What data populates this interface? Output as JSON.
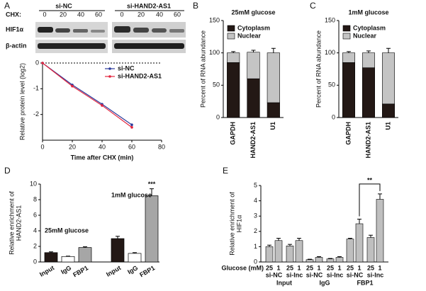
{
  "panel_labels": [
    "A",
    "B",
    "C",
    "D",
    "E"
  ],
  "blot": {
    "chx_label": "CHX:",
    "groups": [
      "si-NC",
      "si-HAND2-AS1"
    ],
    "times": [
      "0",
      "20",
      "40",
      "60",
      "0",
      "20",
      "40",
      "60"
    ],
    "rows": [
      "HIF1α",
      "β-actin"
    ]
  },
  "chart_data": [
    {
      "type": "line",
      "xlabel": "Time after CHX (min)",
      "ylabel": "Relative protein level (log2)",
      "x": [
        0,
        20,
        40,
        60
      ],
      "series": [
        {
          "name": "si-NC",
          "color": "#2b3a9b",
          "values": [
            0,
            -0.85,
            -1.6,
            -2.4
          ]
        },
        {
          "name": "si-HAND2-AS1",
          "color": "#e3263f",
          "values": [
            0,
            -0.9,
            -1.65,
            -2.5
          ]
        }
      ],
      "xlim": [
        0,
        80
      ],
      "xticks": [
        0,
        20,
        40,
        60,
        80
      ],
      "ylim": [
        -3,
        0
      ],
      "yticks": [
        0,
        -1,
        -2
      ],
      "zero_line": true,
      "legend": "upper-right"
    },
    {
      "type": "stacked-bar",
      "title": "25mM glucose",
      "ylabel": "Percent of RNA abundance",
      "categories": [
        "GAPDH",
        "HAND2-AS1",
        "U1"
      ],
      "series": [
        {
          "name": "Cytoplasm",
          "color": "#231815",
          "values": [
            85,
            60,
            23
          ],
          "errors": [
            3,
            6,
            2
          ]
        },
        {
          "name": "Nuclear",
          "color": "#c4c4c4",
          "values": [
            15,
            41,
            77
          ],
          "errors": [
            2,
            3,
            7
          ]
        }
      ],
      "ylim": [
        0,
        150
      ],
      "yticks": [
        0,
        50,
        100,
        150
      ],
      "legend": "upper-left"
    },
    {
      "type": "stacked-bar",
      "title": "1mM glucose",
      "ylabel": "Percent of RNA abundance",
      "categories": [
        "GAPDH",
        "HAND2-AS1",
        "U1"
      ],
      "series": [
        {
          "name": "Cytoplasm",
          "color": "#231815",
          "values": [
            85,
            77,
            21
          ],
          "errors": [
            3,
            8,
            2
          ]
        },
        {
          "name": "Nuclear",
          "color": "#c4c4c4",
          "values": [
            15,
            23,
            79
          ],
          "errors": [
            2,
            3,
            7
          ]
        }
      ],
      "ylim": [
        0,
        150
      ],
      "yticks": [
        0,
        50,
        100,
        150
      ],
      "legend": "upper-left"
    },
    {
      "type": "grouped-bar",
      "ylabel": [
        "Relative enrichment of",
        "HAND2-AS1"
      ],
      "categories": [
        "Input",
        "IgG",
        "FBP1",
        "Input",
        "IgG",
        "FBP1"
      ],
      "values": [
        1.2,
        0.7,
        1.85,
        3.0,
        1.1,
        8.5
      ],
      "errors": [
        0.1,
        0.05,
        0.1,
        0.3,
        0.1,
        0.9
      ],
      "colors": [
        "#231815",
        "#ffffff",
        "#a6a6a6",
        "#231815",
        "#ffffff",
        "#a6a6a6"
      ],
      "ylim": [
        0,
        10
      ],
      "yticks": [
        0,
        2,
        4,
        6,
        8,
        10
      ],
      "annotations": [
        "25mM glucose",
        "1mM glucose",
        "***"
      ]
    },
    {
      "type": "bar",
      "ylabel": [
        "Relative enrichment of",
        "HIF1α"
      ],
      "xlabel": "Glucose (mM)",
      "categories": [
        "25",
        "1",
        "25",
        "1",
        "25",
        "1",
        "25",
        "1",
        "25",
        "1",
        "25",
        "1"
      ],
      "groups": [
        "si-NC",
        "si-Inc",
        "si-NC",
        "si-Inc",
        "si-NC",
        "si-Inc"
      ],
      "supergroups": [
        "Input",
        "IgG",
        "FBP1"
      ],
      "values": [
        1.0,
        1.4,
        1.05,
        1.4,
        0.15,
        0.3,
        0.2,
        0.3,
        1.5,
        2.5,
        1.6,
        4.1
      ],
      "errors": [
        0.1,
        0.15,
        0.1,
        0.15,
        0.03,
        0.05,
        0.03,
        0.05,
        0.05,
        0.3,
        0.15,
        0.35
      ],
      "color": "#bfbfbf",
      "ylim": [
        0,
        5
      ],
      "yticks": [
        0,
        1,
        2,
        3,
        4,
        5
      ],
      "annotations": [
        "**"
      ]
    }
  ]
}
